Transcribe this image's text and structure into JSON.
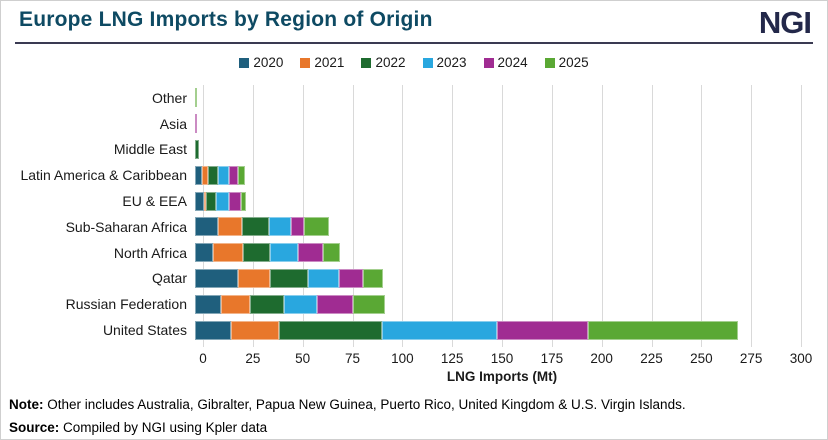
{
  "header": {
    "title": "Europe LNG Imports by Region of Origin",
    "logo": "NGI",
    "title_color": "#0e4a63",
    "logo_color": "#23284a"
  },
  "chart_data": {
    "type": "bar",
    "orientation": "horizontal",
    "stacked": true,
    "categories": [
      "Other",
      "Asia",
      "Middle East",
      "Latin America & Caribbean",
      "EU & EEA",
      "Sub-Saharan Africa",
      "North Africa",
      "Qatar",
      "Russian Federation",
      "United States"
    ],
    "series": [
      {
        "name": "2020",
        "color": "#1f5f7d",
        "values": [
          0,
          0,
          0,
          3.5,
          4.5,
          11.5,
          9,
          21.5,
          13,
          18
        ]
      },
      {
        "name": "2021",
        "color": "#e8772b",
        "values": [
          0,
          0,
          0,
          3,
          1,
          12,
          15,
          16,
          14.5,
          24
        ]
      },
      {
        "name": "2022",
        "color": "#1e6b2f",
        "values": [
          0,
          0,
          2,
          5,
          5,
          13.5,
          13.5,
          19,
          17,
          52
        ]
      },
      {
        "name": "2023",
        "color": "#29a7df",
        "values": [
          0,
          0,
          0,
          5.5,
          6.5,
          11,
          14,
          16,
          16.5,
          57.5
        ]
      },
      {
        "name": "2024",
        "color": "#a02c92",
        "values": [
          0,
          1,
          0,
          4.5,
          6,
          6.5,
          12.5,
          12,
          18.5,
          45.5
        ]
      },
      {
        "name": "2025",
        "color": "#5aa834",
        "values": [
          1,
          0,
          0,
          3.5,
          2.5,
          12.5,
          9,
          10,
          16,
          75.5
        ]
      }
    ],
    "totals": {
      "Other": 1,
      "Asia": 1,
      "Middle East": 2,
      "Latin America & Caribbean": 25,
      "EU & EEA": 25.5,
      "Sub-Saharan Africa": 67,
      "North Africa": 73,
      "Qatar": 94.5,
      "Russian Federation": 95.5,
      "United States": 272.5
    },
    "xlabel": "LNG Imports (Mt)",
    "xlim": [
      0,
      300
    ],
    "xticks": [
      0,
      25,
      50,
      75,
      100,
      125,
      150,
      175,
      200,
      225,
      250,
      275,
      300
    ],
    "grid": true,
    "gridline_color": "#d9d9d9",
    "legend_position": "top"
  },
  "footer": {
    "note_label": "Note:",
    "note_text": " Other includes Australia, Gibralter, Papua New Guinea, Puerto Rico, United Kingdom & U.S. Virgin Islands.",
    "source_label": "Source:",
    "source_text": " Compiled by NGI using Kpler data"
  }
}
